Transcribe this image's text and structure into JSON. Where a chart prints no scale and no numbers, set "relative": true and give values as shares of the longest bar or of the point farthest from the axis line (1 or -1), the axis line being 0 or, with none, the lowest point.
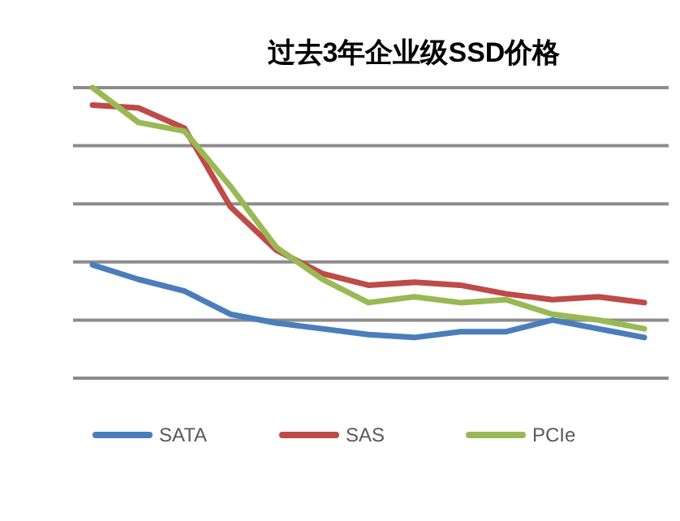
{
  "chart_data": {
    "type": "line",
    "title": "过去3年企业级SSD价格",
    "relative": true,
    "grid": "y",
    "legend": "bottom",
    "marker": "none",
    "line_style": "solid",
    "categories": [
      null,
      null,
      null,
      null,
      null,
      null,
      null,
      null,
      null,
      null,
      null,
      null,
      null
    ],
    "series": [
      {
        "name": "SATA",
        "color": "#4a7ebb",
        "values": [
          0.39,
          0.34,
          0.3,
          0.22,
          0.19,
          0.17,
          0.15,
          0.14,
          0.16,
          0.16,
          0.2,
          0.17,
          0.14
        ]
      },
      {
        "name": "SAS",
        "color": "#be4b48",
        "values": [
          0.94,
          0.93,
          0.86,
          0.59,
          0.44,
          0.36,
          0.32,
          0.33,
          0.32,
          0.29,
          0.27,
          0.28,
          0.26
        ]
      },
      {
        "name": "PCIe",
        "color": "#98b954",
        "values": [
          1,
          0.88,
          0.85,
          0.66,
          0.45,
          0.34,
          0.26,
          0.28,
          0.26,
          0.27,
          0.22,
          0.2,
          0.17
        ]
      }
    ]
  }
}
